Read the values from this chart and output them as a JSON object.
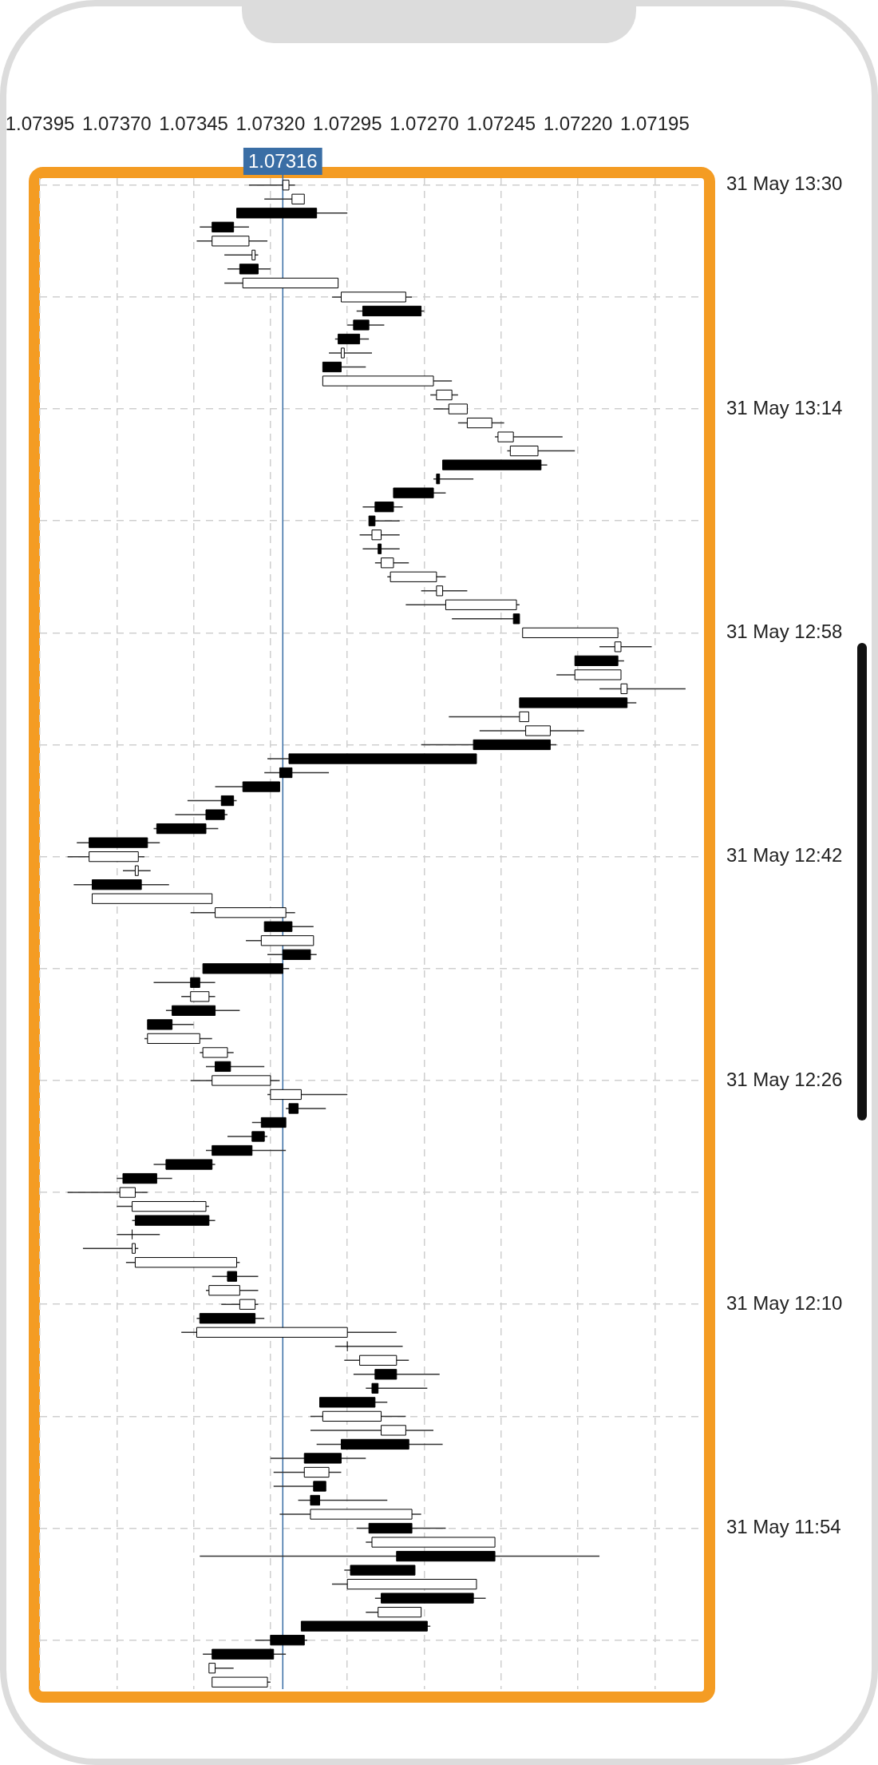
{
  "chart_data": {
    "type": "candlestick",
    "orientation": "horizontal",
    "categories": [
      "31 May 13:30",
      null,
      null,
      null,
      null,
      null,
      null,
      null,
      null,
      null,
      null,
      null,
      null,
      null,
      null,
      null,
      "31 May 13:14",
      null,
      null,
      null,
      null,
      null,
      null,
      null,
      null,
      null,
      null,
      null,
      null,
      null,
      null,
      null,
      "31 May 12:58",
      null,
      null,
      null,
      null,
      null,
      null,
      null,
      null,
      null,
      null,
      null,
      null,
      null,
      null,
      null,
      "31 May 12:42",
      null,
      null,
      null,
      null,
      null,
      null,
      null,
      null,
      null,
      null,
      null,
      null,
      null,
      null,
      null,
      "31 May 12:26",
      null,
      null,
      null,
      null,
      null,
      null,
      null,
      null,
      null,
      null,
      null,
      null,
      null,
      null,
      null,
      "31 May 12:10",
      null,
      null,
      null,
      null,
      null,
      null,
      null,
      null,
      null,
      null,
      null,
      null,
      null,
      null,
      null,
      "31 May 11:54",
      null,
      null,
      null,
      null,
      null,
      null,
      null,
      null,
      null,
      null,
      null
    ],
    "ohlc": [
      [
        1.07314,
        1.07327,
        1.07312,
        1.07316
      ],
      [
        1.07309,
        1.07322,
        1.07309,
        1.07313
      ],
      [
        1.07331,
        1.07331,
        1.07295,
        1.07305
      ],
      [
        1.07339,
        1.07343,
        1.07327,
        1.07332
      ],
      [
        1.07327,
        1.07344,
        1.07321,
        1.07339
      ],
      [
        1.07325,
        1.07335,
        1.07324,
        1.07326
      ],
      [
        1.0733,
        1.07334,
        1.0732,
        1.07324
      ],
      [
        1.07298,
        1.07335,
        1.07298,
        1.07329
      ],
      [
        1.07276,
        1.073,
        1.07274,
        1.07297
      ],
      [
        1.0729,
        1.07292,
        1.0727,
        1.07271
      ],
      [
        1.07293,
        1.07295,
        1.07283,
        1.07288
      ],
      [
        1.07298,
        1.07299,
        1.07288,
        1.07291
      ],
      [
        1.07296,
        1.07301,
        1.07287,
        1.07297
      ],
      [
        1.07303,
        1.07303,
        1.07289,
        1.07297
      ],
      [
        1.07267,
        1.07303,
        1.07261,
        1.07303
      ],
      [
        1.07261,
        1.07268,
        1.07259,
        1.07266
      ],
      [
        1.07256,
        1.07267,
        1.07256,
        1.07262
      ],
      [
        1.07248,
        1.07259,
        1.07244,
        1.07256
      ],
      [
        1.07241,
        1.07247,
        1.07225,
        1.07246
      ],
      [
        1.07233,
        1.07243,
        1.07221,
        1.07242
      ],
      [
        1.07264,
        1.07264,
        1.0723,
        1.07232
      ],
      [
        1.07266,
        1.07267,
        1.07254,
        1.07265
      ],
      [
        1.0728,
        1.0728,
        1.07263,
        1.07267
      ],
      [
        1.07286,
        1.0729,
        1.07277,
        1.0728
      ],
      [
        1.07288,
        1.07288,
        1.07278,
        1.07286
      ],
      [
        1.07284,
        1.07291,
        1.07278,
        1.07287
      ],
      [
        1.07285,
        1.0729,
        1.07278,
        1.07284
      ],
      [
        1.0728,
        1.07286,
        1.07275,
        1.07284
      ],
      [
        1.07266,
        1.07282,
        1.07263,
        1.07281
      ],
      [
        1.07264,
        1.07271,
        1.07256,
        1.07266
      ],
      [
        1.0724,
        1.07276,
        1.07239,
        1.07263
      ],
      [
        1.07241,
        1.07261,
        1.07239,
        1.07239
      ],
      [
        1.07207,
        1.07238,
        1.07207,
        1.07238
      ],
      [
        1.07206,
        1.07213,
        1.07196,
        1.07208
      ],
      [
        1.07221,
        1.07221,
        1.07205,
        1.07207
      ],
      [
        1.07206,
        1.07227,
        1.07206,
        1.07221
      ],
      [
        1.07204,
        1.07213,
        1.07185,
        1.07206
      ],
      [
        1.07239,
        1.07239,
        1.07201,
        1.07204
      ],
      [
        1.07236,
        1.07262,
        1.07236,
        1.07239
      ],
      [
        1.07229,
        1.07252,
        1.07218,
        1.07237
      ],
      [
        1.07254,
        1.07271,
        1.07227,
        1.07229
      ],
      [
        1.07314,
        1.07321,
        1.07253,
        1.07253
      ],
      [
        1.07317,
        1.07322,
        1.07301,
        1.07313
      ],
      [
        1.07329,
        1.07338,
        1.07317,
        1.07317
      ],
      [
        1.07336,
        1.07347,
        1.07331,
        1.07332
      ],
      [
        1.07341,
        1.07351,
        1.07334,
        1.07335
      ],
      [
        1.07357,
        1.07358,
        1.07337,
        1.07341
      ],
      [
        1.07379,
        1.07383,
        1.07356,
        1.0736
      ],
      [
        1.07363,
        1.07386,
        1.07361,
        1.07379
      ],
      [
        1.07363,
        1.07368,
        1.07359,
        1.07364
      ],
      [
        1.07378,
        1.07384,
        1.07353,
        1.07362
      ],
      [
        1.07339,
        1.07378,
        1.07339,
        1.07378
      ],
      [
        1.07315,
        1.07346,
        1.07312,
        1.07338
      ],
      [
        1.07322,
        1.07322,
        1.07306,
        1.07313
      ],
      [
        1.07306,
        1.07328,
        1.07306,
        1.07323
      ],
      [
        1.07316,
        1.07321,
        1.07305,
        1.07307
      ],
      [
        1.07342,
        1.07342,
        1.07314,
        1.07316
      ],
      [
        1.07346,
        1.07358,
        1.07338,
        1.07343
      ],
      [
        1.0734,
        1.07349,
        1.07338,
        1.07346
      ],
      [
        1.07352,
        1.07354,
        1.0733,
        1.07338
      ],
      [
        1.0736,
        1.0736,
        1.07345,
        1.07352
      ],
      [
        1.07343,
        1.07361,
        1.07339,
        1.0736
      ],
      [
        1.07334,
        1.07343,
        1.07332,
        1.07342
      ],
      [
        1.07338,
        1.07341,
        1.07322,
        1.07333
      ],
      [
        1.0732,
        1.07346,
        1.07317,
        1.07339
      ],
      [
        1.0731,
        1.07321,
        1.07295,
        1.0732
      ],
      [
        1.07314,
        1.07315,
        1.07302,
        1.07311
      ],
      [
        1.07323,
        1.07326,
        1.07315,
        1.07315
      ],
      [
        1.07326,
        1.07334,
        1.07321,
        1.07322
      ],
      [
        1.07339,
        1.07341,
        1.07315,
        1.07326
      ],
      [
        1.07354,
        1.07358,
        1.07338,
        1.07339
      ],
      [
        1.07368,
        1.0737,
        1.07352,
        1.07357
      ],
      [
        1.07364,
        1.07386,
        1.0736,
        1.07369
      ],
      [
        1.07341,
        1.0737,
        1.0734,
        1.07365
      ],
      [
        1.07364,
        1.07365,
        1.07338,
        1.0734
      ],
      [
        1.07365,
        1.0737,
        1.07356,
        1.07365
      ],
      [
        1.07364,
        1.07381,
        1.07363,
        1.07365
      ],
      [
        1.07331,
        1.07367,
        1.0733,
        1.07364
      ],
      [
        1.07334,
        1.07339,
        1.07324,
        1.07331
      ],
      [
        1.0733,
        1.07341,
        1.07324,
        1.0734
      ],
      [
        1.07325,
        1.07336,
        1.07324,
        1.0733
      ],
      [
        1.07343,
        1.07344,
        1.07322,
        1.07325
      ],
      [
        1.07295,
        1.07349,
        1.07279,
        1.07344
      ],
      [
        1.07295,
        1.07299,
        1.07277,
        1.07295
      ],
      [
        1.07279,
        1.07296,
        1.07275,
        1.07291
      ],
      [
        1.07286,
        1.07293,
        1.07265,
        1.07279
      ],
      [
        1.07287,
        1.07289,
        1.07269,
        1.07285
      ],
      [
        1.07304,
        1.07304,
        1.07282,
        1.07286
      ],
      [
        1.07284,
        1.07307,
        1.07276,
        1.07303
      ],
      [
        1.07276,
        1.07307,
        1.07267,
        1.07284
      ],
      [
        1.07297,
        1.07305,
        1.07264,
        1.07275
      ],
      [
        1.07309,
        1.0732,
        1.07289,
        1.07297
      ],
      [
        1.07301,
        1.07319,
        1.07297,
        1.07309
      ],
      [
        1.07306,
        1.07319,
        1.07302,
        1.07302
      ],
      [
        1.07307,
        1.07311,
        1.07282,
        1.07304
      ],
      [
        1.07274,
        1.07317,
        1.07271,
        1.07307
      ],
      [
        1.07288,
        1.07292,
        1.07263,
        1.07274
      ],
      [
        1.07247,
        1.07289,
        1.07247,
        1.07287
      ],
      [
        1.07279,
        1.07343,
        1.07213,
        1.07247
      ],
      [
        1.07294,
        1.07296,
        1.07273,
        1.07273
      ],
      [
        1.07253,
        1.073,
        1.07253,
        1.07295
      ],
      [
        1.07284,
        1.07286,
        1.0725,
        1.07254
      ],
      [
        1.07271,
        1.07289,
        1.07271,
        1.07285
      ],
      [
        1.0731,
        1.0731,
        1.07268,
        1.07269
      ],
      [
        1.0732,
        1.07325,
        1.07308,
        1.07309
      ],
      [
        1.07339,
        1.07342,
        1.07315,
        1.07319
      ],
      [
        1.07338,
        1.0734,
        1.07332,
        1.0734
      ],
      [
        1.07321,
        1.07339,
        1.0732,
        1.07339
      ]
    ],
    "xlim": [
      1.07395,
      1.07179
    ],
    "xticks": [
      {
        "value": 1.07395,
        "label": "1.07395"
      },
      {
        "value": 1.0737,
        "label": "1.07370"
      },
      {
        "value": 1.07345,
        "label": "1.07345"
      },
      {
        "value": 1.0732,
        "label": "1.07320"
      },
      {
        "value": 1.07295,
        "label": "1.07295"
      },
      {
        "value": 1.0727,
        "label": "1.07270"
      },
      {
        "value": 1.07245,
        "label": "1.07245"
      },
      {
        "value": 1.0722,
        "label": "1.07220"
      },
      {
        "value": 1.07195,
        "label": "1.07195"
      }
    ],
    "grid": true,
    "legend": false,
    "ref_lines": [
      {
        "axis": "x",
        "value": 1.07316,
        "label": "1.07316",
        "color": "#3a6ea5"
      }
    ]
  }
}
